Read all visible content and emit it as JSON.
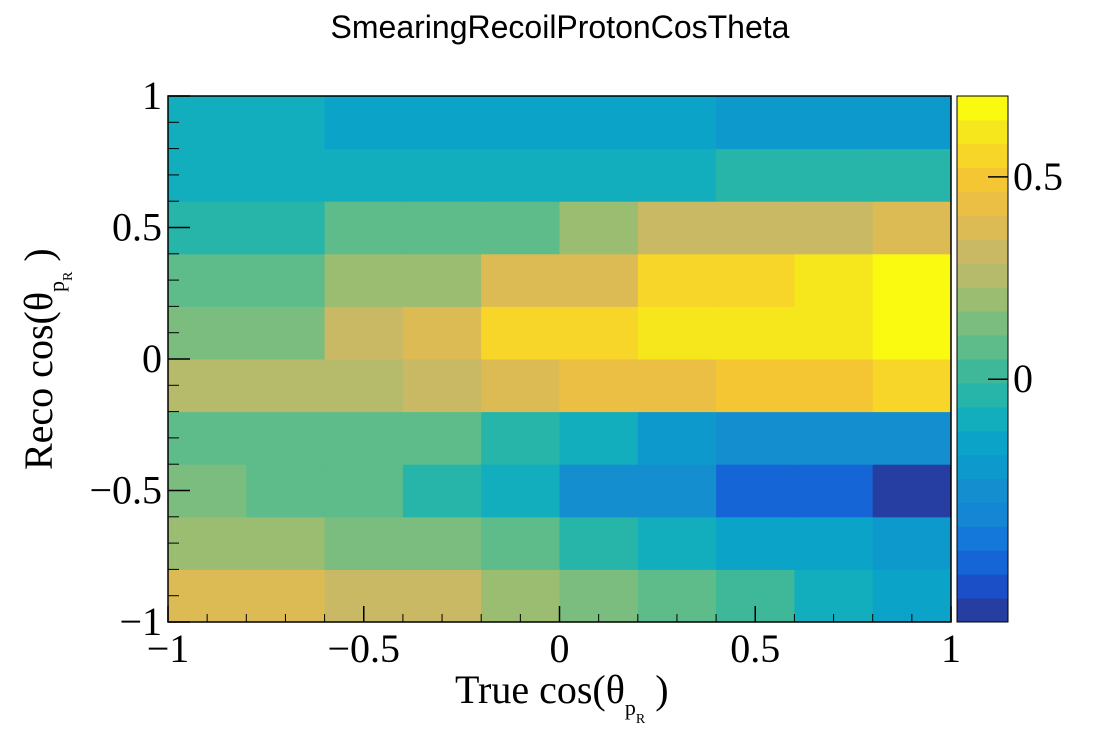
{
  "chart_data": {
    "type": "heatmap",
    "title": "SmearingRecoilProtonCosTheta",
    "xlabel": {
      "prefix": "True cos(θ",
      "sub": "p",
      "subsub": "R",
      "suffix": ")"
    },
    "ylabel": {
      "prefix": "Reco cos(θ",
      "sub": "p",
      "subsub": "R",
      "suffix": ")"
    },
    "xlim": [
      -1,
      1
    ],
    "ylim": [
      -1,
      1
    ],
    "x_ticks": [
      "−1",
      "−0.5",
      "0",
      "0.5",
      "1"
    ],
    "y_ticks": [
      "−1",
      "−0.5",
      "0",
      "0.5",
      "1"
    ],
    "x_edges": [
      -1,
      -0.8,
      -0.6,
      -0.4,
      -0.2,
      0,
      0.2,
      0.4,
      0.6,
      0.8,
      1
    ],
    "y_edges": [
      -1,
      -0.8,
      -0.6,
      -0.4,
      -0.2,
      0,
      0.2,
      0.4,
      0.6,
      0.8,
      1
    ],
    "values": [
      [
        0.4,
        0.4,
        0.3,
        0.3,
        0.2,
        0.15,
        0.05,
        0.0,
        -0.1,
        -0.15
      ],
      [
        0.2,
        0.2,
        0.15,
        0.15,
        0.05,
        -0.05,
        -0.1,
        -0.15,
        -0.15,
        -0.2
      ],
      [
        0.15,
        0.05,
        0.05,
        -0.05,
        -0.1,
        -0.25,
        -0.3,
        -0.45,
        -0.45,
        -0.55
      ],
      [
        0.05,
        0.05,
        0.05,
        0.05,
        -0.05,
        -0.1,
        -0.2,
        -0.25,
        -0.25,
        -0.3
      ],
      [
        0.25,
        0.25,
        0.25,
        0.3,
        0.35,
        0.45,
        0.45,
        0.5,
        0.5,
        0.55
      ],
      [
        0.15,
        0.15,
        0.3,
        0.35,
        0.55,
        0.55,
        0.6,
        0.6,
        0.6,
        0.65
      ],
      [
        0.05,
        0.05,
        0.2,
        0.2,
        0.35,
        0.4,
        0.55,
        0.55,
        0.6,
        0.65
      ],
      [
        -0.05,
        -0.05,
        0.05,
        0.05,
        0.1,
        0.2,
        0.3,
        0.3,
        0.3,
        0.4
      ],
      [
        -0.1,
        -0.1,
        -0.1,
        -0.1,
        -0.1,
        -0.1,
        -0.1,
        -0.05,
        -0.05,
        -0.05
      ],
      [
        -0.1,
        -0.1,
        -0.15,
        -0.15,
        -0.15,
        -0.15,
        -0.15,
        -0.2,
        -0.2,
        -0.2
      ]
    ],
    "z_min": -0.6,
    "z_max": 0.7,
    "colorbar_ticks": [
      {
        "value": 0,
        "label": "0"
      },
      {
        "value": 0.5,
        "label": "0.5"
      }
    ],
    "palette": [
      "#263da2",
      "#1a4fc8",
      "#1565d6",
      "#1378d9",
      "#1586d4",
      "#148ece",
      "#0e99cc",
      "#0ba4c8",
      "#12aebd",
      "#26b5a8",
      "#3eb898",
      "#5dbc89",
      "#7bbd7e",
      "#9bbd72",
      "#b5bb6b",
      "#c9b964",
      "#dcbb55",
      "#ebbf44",
      "#f5c634",
      "#f7d529",
      "#f6e61c",
      "#f9fa10"
    ],
    "colorbar": true,
    "grid": false,
    "legend": false
  }
}
